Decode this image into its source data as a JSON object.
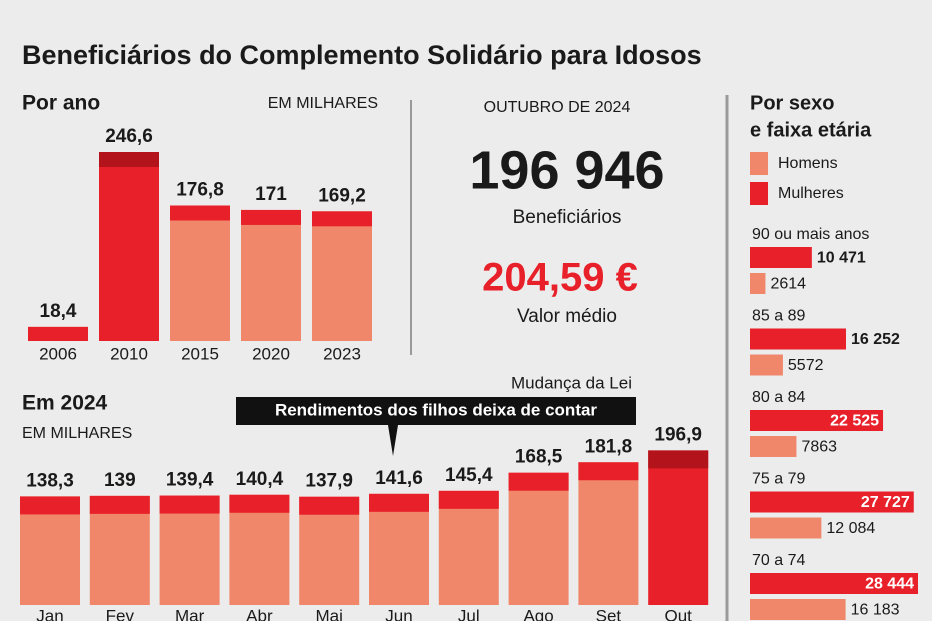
{
  "title": "Beneficiários do Complemento Solidário para Idosos",
  "headline": {
    "period": "OUTUBRO DE 2024",
    "beneficiaries": "196 946",
    "beneficiaries_label": "Beneficiários",
    "average": "204,59 €",
    "average_label": "Valor médio"
  },
  "chart_data": [
    {
      "type": "bar",
      "title": "Por ano",
      "subtitle": "EM MILHARES",
      "categories": [
        "2006",
        "2010",
        "2015",
        "2020",
        "2023"
      ],
      "values": [
        18.4,
        246.6,
        176.8,
        171,
        169.2
      ],
      "value_labels": [
        "18,4",
        "246,6",
        "176,8",
        "171",
        "169,2"
      ],
      "colors": [
        "#e8202a",
        "#e8202a",
        "#f0876b",
        "#f0876b",
        "#f0876b"
      ],
      "cap_colors": [
        "#e8202a",
        "#b3141c",
        "#e8202a",
        "#e8202a",
        "#e8202a"
      ]
    },
    {
      "type": "bar",
      "title": "Em 2024",
      "subtitle": "EM MILHARES",
      "annotations": [
        "Mudança da Lei",
        "Rendimentos dos filhos deixa de contar"
      ],
      "categories": [
        "Jan",
        "Fev",
        "Mar",
        "Abr",
        "Mai",
        "Jun",
        "Jul",
        "Ago",
        "Set",
        "Out"
      ],
      "values": [
        138.3,
        139,
        139.4,
        140.4,
        137.9,
        141.6,
        145.4,
        168.5,
        181.8,
        196.9
      ],
      "value_labels": [
        "138,3",
        "139",
        "139,4",
        "140,4",
        "137,9",
        "141,6",
        "145,4",
        "168,5",
        "181,8",
        "196,9"
      ],
      "colors": [
        "#f0876b",
        "#f0876b",
        "#f0876b",
        "#f0876b",
        "#f0876b",
        "#f0876b",
        "#f0876b",
        "#f0876b",
        "#f0876b",
        "#e8202a"
      ],
      "cap_colors": [
        "#e8202a",
        "#e8202a",
        "#e8202a",
        "#e8202a",
        "#e8202a",
        "#e8202a",
        "#e8202a",
        "#e8202a",
        "#e8202a",
        "#b3141c"
      ]
    },
    {
      "type": "hbar",
      "title": [
        "Por  sexo",
        "e faixa etária"
      ],
      "categories": [
        "90 ou mais anos",
        "85 a 89",
        "80 a 84",
        "75 a 79",
        "70 a 74"
      ],
      "series": [
        {
          "name": "Homens",
          "color": "#f0876b",
          "values": [
            2614,
            5572,
            7863,
            12084,
            16183
          ],
          "value_labels": [
            "2614",
            "5572",
            "7863",
            "12 084",
            "16 183"
          ]
        },
        {
          "name": "Mulheres",
          "color": "#e8202a",
          "values": [
            10471,
            16252,
            22525,
            27727,
            28444
          ],
          "value_labels": [
            "10 471",
            "16 252",
            "22 525",
            "27 727",
            "28 444"
          ]
        }
      ]
    }
  ]
}
